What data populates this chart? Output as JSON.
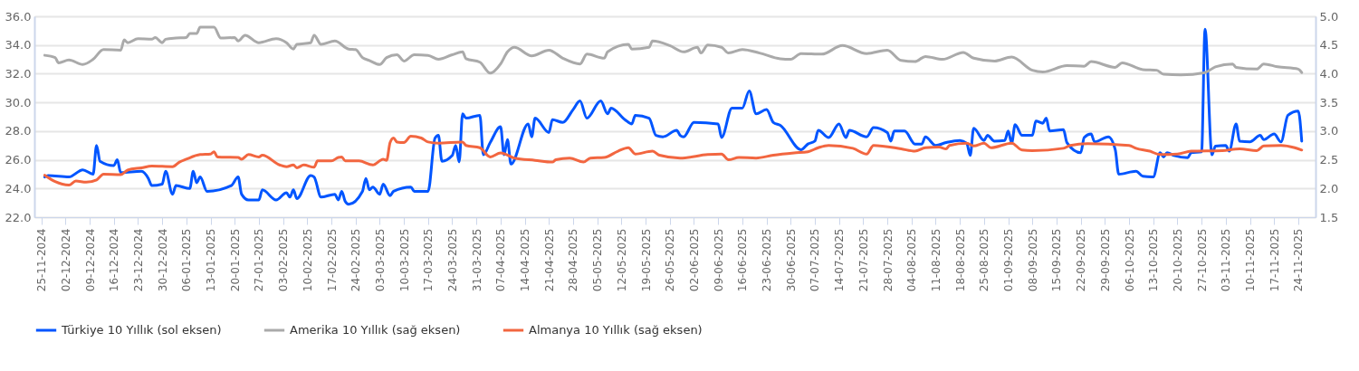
{
  "chart_data": {
    "type": "line",
    "legend": "bottom",
    "grid": "y",
    "xlim": [
      "2024-11-23",
      "2025-11-29"
    ],
    "xticks": [
      {
        "value": "2024-11-25",
        "label": "25-11-2024"
      },
      {
        "value": "2024-12-02",
        "label": "02-12-2024"
      },
      {
        "value": "2024-12-09",
        "label": "09-12-2024"
      },
      {
        "value": "2024-12-16",
        "label": "16-12-2024"
      },
      {
        "value": "2024-12-23",
        "label": "23-12-2024"
      },
      {
        "value": "2024-12-30",
        "label": "30-12-2024"
      },
      {
        "value": "2025-01-06",
        "label": "06-01-2025"
      },
      {
        "value": "2025-01-13",
        "label": "13-01-2025"
      },
      {
        "value": "2025-01-20",
        "label": "20-01-2025"
      },
      {
        "value": "2025-01-27",
        "label": "27-01-2025"
      },
      {
        "value": "2025-02-03",
        "label": "03-02-2025"
      },
      {
        "value": "2025-02-10",
        "label": "10-02-2025"
      },
      {
        "value": "2025-02-17",
        "label": "17-02-2025"
      },
      {
        "value": "2025-02-24",
        "label": "24-02-2025"
      },
      {
        "value": "2025-03-03",
        "label": "03-03-2025"
      },
      {
        "value": "2025-03-10",
        "label": "10-03-2025"
      },
      {
        "value": "2025-03-17",
        "label": "17-03-2025"
      },
      {
        "value": "2025-03-24",
        "label": "24-03-2025"
      },
      {
        "value": "2025-03-31",
        "label": "31-03-2025"
      },
      {
        "value": "2025-04-07",
        "label": "07-04-2025"
      },
      {
        "value": "2025-04-14",
        "label": "14-04-2025"
      },
      {
        "value": "2025-04-21",
        "label": "21-04-2025"
      },
      {
        "value": "2025-04-28",
        "label": "28-04-2025"
      },
      {
        "value": "2025-05-05",
        "label": "05-05-2025"
      },
      {
        "value": "2025-05-12",
        "label": "12-05-2025"
      },
      {
        "value": "2025-05-19",
        "label": "19-05-2025"
      },
      {
        "value": "2025-05-26",
        "label": "26-05-2025"
      },
      {
        "value": "2025-06-02",
        "label": "02-06-2025"
      },
      {
        "value": "2025-06-09",
        "label": "09-06-2025"
      },
      {
        "value": "2025-06-16",
        "label": "16-06-2025"
      },
      {
        "value": "2025-06-23",
        "label": "23-06-2025"
      },
      {
        "value": "2025-06-30",
        "label": "30-06-2025"
      },
      {
        "value": "2025-07-07",
        "label": "07-07-2025"
      },
      {
        "value": "2025-07-14",
        "label": "14-07-2025"
      },
      {
        "value": "2025-07-21",
        "label": "21-07-2025"
      },
      {
        "value": "2025-07-28",
        "label": "28-07-2025"
      },
      {
        "value": "2025-08-04",
        "label": "04-08-2025"
      },
      {
        "value": "2025-08-11",
        "label": "11-08-2025"
      },
      {
        "value": "2025-08-18",
        "label": "18-08-2025"
      },
      {
        "value": "2025-08-25",
        "label": "25-08-2025"
      },
      {
        "value": "2025-09-01",
        "label": "01-09-2025"
      },
      {
        "value": "2025-09-08",
        "label": "08-09-2025"
      },
      {
        "value": "2025-09-15",
        "label": "15-09-2025"
      },
      {
        "value": "2025-09-22",
        "label": "22-09-2025"
      },
      {
        "value": "2025-09-29",
        "label": "29-09-2025"
      },
      {
        "value": "2025-10-06",
        "label": "06-10-2025"
      },
      {
        "value": "2025-10-13",
        "label": "13-10-2025"
      },
      {
        "value": "2025-10-20",
        "label": "20-10-2025"
      },
      {
        "value": "2025-10-27",
        "label": "27-10-2025"
      },
      {
        "value": "2025-11-03",
        "label": "03-11-2025"
      },
      {
        "value": "2025-11-10",
        "label": "10-11-2025"
      },
      {
        "value": "2025-11-17",
        "label": "17-11-2025"
      },
      {
        "value": "2025-11-24",
        "label": "24-11-2025"
      }
    ],
    "ylim": [
      22,
      36
    ],
    "yticks": [
      {
        "value": 22,
        "label": "22.0"
      },
      {
        "value": 24,
        "label": "24.0"
      },
      {
        "value": 26,
        "label": "26.0"
      },
      {
        "value": 28,
        "label": "28.0"
      },
      {
        "value": 30,
        "label": "30.0"
      },
      {
        "value": 32,
        "label": "32.0"
      },
      {
        "value": 34,
        "label": "34.0"
      },
      {
        "value": 36,
        "label": "36.0"
      }
    ],
    "y2lim": [
      1.5,
      5.0
    ],
    "y2ticks": [
      {
        "value": 1.5,
        "label": "1.5"
      },
      {
        "value": 2,
        "label": "2.0"
      },
      {
        "value": 2.5,
        "label": "2.5"
      },
      {
        "value": 3,
        "label": "3.0"
      },
      {
        "value": 3.5,
        "label": "3.5"
      },
      {
        "value": 4,
        "label": "4.0"
      },
      {
        "value": 4.5,
        "label": "4.5"
      },
      {
        "value": 5,
        "label": "5.0"
      }
    ],
    "series": [
      {
        "name": "Türkiye 10 Yıllık (sol eksen)",
        "color": "#0055ff",
        "axis": "y",
        "x": [
          "2024-11-26",
          "2024-11-27",
          "2024-12-03",
          "2024-12-07",
          "2024-12-10",
          "2024-12-11",
          "2024-12-12",
          "2024-12-16",
          "2024-12-17",
          "2024-12-18",
          "2024-12-24",
          "2024-12-26",
          "2024-12-27",
          "2024-12-30",
          "2024-12-31",
          "2025-01-02",
          "2025-01-03",
          "2025-01-07",
          "2025-01-08",
          "2025-01-09",
          "2025-01-10",
          "2025-01-12",
          "2025-01-19",
          "2025-01-21",
          "2025-01-22",
          "2025-01-24",
          "2025-01-27",
          "2025-01-28",
          "2025-02-01",
          "2025-02-04",
          "2025-02-05",
          "2025-02-06",
          "2025-02-07",
          "2025-02-11",
          "2025-02-12",
          "2025-02-14",
          "2025-02-18",
          "2025-02-19",
          "2025-02-20",
          "2025-02-21",
          "2025-02-22",
          "2025-02-26",
          "2025-02-27",
          "2025-02-28",
          "2025-03-01",
          "2025-03-03",
          "2025-03-04",
          "2025-03-06",
          "2025-03-07",
          "2025-03-12",
          "2025-03-13",
          "2025-03-17",
          "2025-03-19",
          "2025-03-20",
          "2025-03-21",
          "2025-03-24",
          "2025-03-25",
          "2025-03-26",
          "2025-03-27",
          "2025-03-28",
          "2025-04-01",
          "2025-04-02",
          "2025-04-04",
          "2025-04-07",
          "2025-04-08",
          "2025-04-09",
          "2025-04-10",
          "2025-04-15",
          "2025-04-16",
          "2025-04-17",
          "2025-04-21",
          "2025-04-22",
          "2025-04-25",
          "2025-04-28",
          "2025-04-30",
          "2025-05-02",
          "2025-05-06",
          "2025-05-08",
          "2025-05-09",
          "2025-05-13",
          "2025-05-15",
          "2025-05-16",
          "2025-05-20",
          "2025-05-22",
          "2025-05-24",
          "2025-05-28",
          "2025-05-29",
          "2025-05-30",
          "2025-06-02",
          "2025-06-09",
          "2025-06-10",
          "2025-06-13",
          "2025-06-16",
          "2025-06-18",
          "2025-06-20",
          "2025-06-23",
          "2025-06-25",
          "2025-06-27",
          "2025-07-03",
          "2025-07-05",
          "2025-07-07",
          "2025-07-08",
          "2025-07-11",
          "2025-07-14",
          "2025-07-16",
          "2025-07-17",
          "2025-07-22",
          "2025-07-24",
          "2025-07-28",
          "2025-07-29",
          "2025-07-30",
          "2025-08-02",
          "2025-08-05",
          "2025-08-07",
          "2025-08-08",
          "2025-08-11",
          "2025-08-14",
          "2025-08-18",
          "2025-08-20",
          "2025-08-21",
          "2025-08-22",
          "2025-08-25",
          "2025-08-26",
          "2025-08-28",
          "2025-08-31",
          "2025-09-01",
          "2025-09-02",
          "2025-09-03",
          "2025-09-05",
          "2025-09-08",
          "2025-09-09",
          "2025-09-11",
          "2025-09-12",
          "2025-09-13",
          "2025-09-17",
          "2025-09-18",
          "2025-09-22",
          "2025-09-23",
          "2025-09-25",
          "2025-09-26",
          "2025-09-30",
          "2025-10-02",
          "2025-10-03",
          "2025-10-08",
          "2025-10-10",
          "2025-10-13",
          "2025-10-15",
          "2025-10-16",
          "2025-10-17",
          "2025-10-19",
          "2025-10-23",
          "2025-10-24",
          "2025-10-27",
          "2025-10-28",
          "2025-10-30",
          "2025-10-31",
          "2025-11-03",
          "2025-11-04",
          "2025-11-06",
          "2025-11-07",
          "2025-11-10",
          "2025-11-13",
          "2025-11-14",
          "2025-11-17",
          "2025-11-19",
          "2025-11-21",
          "2025-11-24",
          "2025-11-25"
        ],
        "values": [
          24.8,
          24.9,
          24.8,
          25.3,
          25.0,
          27.0,
          25.9,
          25.6,
          26.0,
          25.1,
          25.2,
          24.7,
          24.2,
          24.3,
          25.2,
          23.6,
          24.2,
          24.0,
          25.2,
          24.4,
          24.8,
          23.8,
          24.2,
          24.8,
          23.6,
          23.2,
          23.2,
          23.9,
          23.2,
          23.7,
          23.4,
          23.9,
          23.3,
          24.9,
          24.8,
          23.4,
          23.6,
          23.2,
          23.8,
          23.1,
          22.9,
          23.8,
          24.7,
          23.9,
          24.1,
          23.6,
          24.3,
          23.5,
          23.8,
          24.1,
          23.8,
          23.8,
          27.5,
          27.7,
          25.9,
          26.3,
          27.0,
          25.85,
          29.2,
          28.9,
          29.1,
          26.35,
          27.2,
          28.3,
          26.35,
          27.4,
          25.7,
          28.5,
          27.6,
          28.9,
          27.9,
          28.8,
          28.6,
          29.5,
          30.1,
          28.9,
          30.1,
          29.2,
          29.6,
          28.8,
          28.5,
          29.1,
          28.9,
          27.7,
          27.6,
          28.05,
          27.7,
          27.6,
          28.6,
          28.5,
          27.55,
          29.6,
          29.6,
          30.8,
          29.2,
          29.5,
          28.6,
          28.4,
          26.7,
          27.1,
          27.3,
          28.05,
          27.55,
          28.5,
          27.55,
          28.05,
          27.6,
          28.25,
          27.9,
          27.3,
          28.0,
          28.0,
          27.1,
          27.1,
          27.6,
          27.0,
          27.2,
          27.35,
          27.15,
          26.3,
          28.2,
          27.35,
          27.7,
          27.3,
          27.35,
          28.0,
          27.15,
          28.45,
          27.7,
          27.7,
          28.7,
          28.55,
          28.9,
          28.0,
          28.1,
          27.2,
          26.5,
          27.55,
          27.8,
          27.25,
          27.6,
          26.7,
          25.0,
          25.2,
          24.85,
          24.8,
          26.5,
          26.2,
          26.5,
          26.3,
          26.15,
          26.5,
          26.55,
          35.1,
          26.35,
          26.95,
          27.0,
          26.6,
          28.5,
          27.3,
          27.25,
          27.7,
          27.4,
          27.8,
          27.25,
          29.1,
          29.4,
          27.3
        ]
      },
      {
        "name": "Amerika 10 Yıllık (sağ eksen)",
        "color": "#aaaaaa",
        "axis": "y2",
        "x": [
          "2024-11-26",
          "2024-11-29",
          "2024-11-30",
          "2024-12-03",
          "2024-12-07",
          "2024-12-10",
          "2024-12-13",
          "2024-12-18",
          "2024-12-19",
          "2024-12-20",
          "2024-12-23",
          "2024-12-27",
          "2024-12-28",
          "2024-12-30",
          "2024-12-31",
          "2025-01-03",
          "2025-01-06",
          "2025-01-07",
          "2025-01-09",
          "2025-01-10",
          "2025-01-14",
          "2025-01-16",
          "2025-01-20",
          "2025-01-21",
          "2025-01-23",
          "2025-01-27",
          "2025-02-01",
          "2025-02-04",
          "2025-02-06",
          "2025-02-07",
          "2025-02-11",
          "2025-02-12",
          "2025-02-14",
          "2025-02-18",
          "2025-02-22",
          "2025-02-24",
          "2025-02-26",
          "2025-02-28",
          "2025-03-03",
          "2025-03-05",
          "2025-03-08",
          "2025-03-10",
          "2025-03-13",
          "2025-03-17",
          "2025-03-20",
          "2025-03-24",
          "2025-03-27",
          "2025-03-28",
          "2025-04-01",
          "2025-04-04",
          "2025-04-07",
          "2025-04-09",
          "2025-04-11",
          "2025-04-16",
          "2025-04-21",
          "2025-04-25",
          "2025-04-30",
          "2025-05-02",
          "2025-05-07",
          "2025-05-08",
          "2025-05-14",
          "2025-05-15",
          "2025-05-20",
          "2025-05-21",
          "2025-05-26",
          "2025-05-30",
          "2025-06-03",
          "2025-06-04",
          "2025-06-06",
          "2025-06-10",
          "2025-06-12",
          "2025-06-16",
          "2025-06-21",
          "2025-06-27",
          "2025-06-30",
          "2025-07-03",
          "2025-07-09",
          "2025-07-15",
          "2025-07-22",
          "2025-07-28",
          "2025-08-01",
          "2025-08-05",
          "2025-08-08",
          "2025-08-13",
          "2025-08-19",
          "2025-08-22",
          "2025-08-28",
          "2025-09-02",
          "2025-09-08",
          "2025-09-11",
          "2025-09-18",
          "2025-09-23",
          "2025-09-25",
          "2025-10-02",
          "2025-10-04",
          "2025-10-10",
          "2025-10-14",
          "2025-10-16",
          "2025-10-21",
          "2025-10-28",
          "2025-10-31",
          "2025-11-05",
          "2025-11-06",
          "2025-11-12",
          "2025-11-14",
          "2025-11-18",
          "2025-11-24",
          "2025-11-25"
        ],
        "values": [
          4.32,
          4.28,
          4.19,
          4.24,
          4.16,
          4.25,
          4.42,
          4.41,
          4.59,
          4.54,
          4.61,
          4.6,
          4.63,
          4.54,
          4.6,
          4.62,
          4.63,
          4.7,
          4.7,
          4.81,
          4.81,
          4.62,
          4.63,
          4.57,
          4.67,
          4.54,
          4.61,
          4.54,
          4.43,
          4.51,
          4.54,
          4.67,
          4.51,
          4.57,
          4.43,
          4.42,
          4.28,
          4.23,
          4.16,
          4.28,
          4.33,
          4.22,
          4.33,
          4.32,
          4.25,
          4.33,
          4.38,
          4.26,
          4.2,
          4.01,
          4.17,
          4.38,
          4.46,
          4.31,
          4.41,
          4.27,
          4.17,
          4.34,
          4.27,
          4.38,
          4.51,
          4.43,
          4.46,
          4.57,
          4.49,
          4.38,
          4.46,
          4.36,
          4.5,
          4.46,
          4.36,
          4.42,
          4.36,
          4.26,
          4.25,
          4.35,
          4.34,
          4.49,
          4.35,
          4.41,
          4.23,
          4.21,
          4.3,
          4.25,
          4.37,
          4.27,
          4.22,
          4.29,
          4.06,
          4.03,
          4.14,
          4.13,
          4.21,
          4.11,
          4.19,
          4.07,
          4.06,
          3.99,
          3.98,
          4.02,
          4.12,
          4.17,
          4.11,
          4.08,
          4.17,
          4.12,
          4.08,
          4.02
        ]
      },
      {
        "name": "Almanya 10 Yıllık (sağ eksen)",
        "color": "#f26640",
        "axis": "y2",
        "x": [
          "2024-11-26",
          "2024-11-29",
          "2024-12-03",
          "2024-12-05",
          "2024-12-08",
          "2024-12-11",
          "2024-12-13",
          "2024-12-18",
          "2024-12-20",
          "2024-12-24",
          "2024-12-27",
          "2025-01-02",
          "2025-01-04",
          "2025-01-06",
          "2025-01-10",
          "2025-01-13",
          "2025-01-14",
          "2025-01-15",
          "2025-01-21",
          "2025-01-22",
          "2025-01-24",
          "2025-01-27",
          "2025-01-28",
          "2025-02-02",
          "2025-02-04",
          "2025-02-06",
          "2025-02-07",
          "2025-02-09",
          "2025-02-12",
          "2025-02-13",
          "2025-02-17",
          "2025-02-19",
          "2025-02-20",
          "2025-02-21",
          "2025-02-25",
          "2025-03-01",
          "2025-03-04",
          "2025-03-05",
          "2025-03-06",
          "2025-03-07",
          "2025-03-08",
          "2025-03-10",
          "2025-03-12",
          "2025-03-15",
          "2025-03-17",
          "2025-03-20",
          "2025-03-27",
          "2025-03-28",
          "2025-04-01",
          "2025-04-04",
          "2025-04-07",
          "2025-04-11",
          "2025-04-17",
          "2025-04-22",
          "2025-04-23",
          "2025-04-27",
          "2025-05-01",
          "2025-05-03",
          "2025-05-07",
          "2025-05-11",
          "2025-05-14",
          "2025-05-16",
          "2025-05-21",
          "2025-05-23",
          "2025-05-29",
          "2025-06-06",
          "2025-06-10",
          "2025-06-12",
          "2025-06-15",
          "2025-06-20",
          "2025-06-25",
          "2025-07-01",
          "2025-07-05",
          "2025-07-08",
          "2025-07-11",
          "2025-07-18",
          "2025-07-22",
          "2025-07-24",
          "2025-08-01",
          "2025-08-05",
          "2025-08-08",
          "2025-08-12",
          "2025-08-14",
          "2025-08-15",
          "2025-08-20",
          "2025-08-22",
          "2025-08-25",
          "2025-08-27",
          "2025-09-02",
          "2025-09-05",
          "2025-09-08",
          "2025-09-17",
          "2025-09-19",
          "2025-09-24",
          "2025-10-06",
          "2025-10-08",
          "2025-10-12",
          "2025-10-15",
          "2025-10-20",
          "2025-10-24",
          "2025-11-02",
          "2025-11-07",
          "2025-11-12",
          "2025-11-14",
          "2025-11-19",
          "2025-11-23",
          "2025-11-25"
        ],
        "values": [
          2.23,
          2.12,
          2.06,
          2.13,
          2.11,
          2.15,
          2.25,
          2.24,
          2.32,
          2.36,
          2.39,
          2.38,
          2.46,
          2.51,
          2.59,
          2.6,
          2.64,
          2.55,
          2.54,
          2.51,
          2.59,
          2.55,
          2.58,
          2.41,
          2.38,
          2.41,
          2.36,
          2.41,
          2.37,
          2.48,
          2.48,
          2.54,
          2.55,
          2.48,
          2.48,
          2.41,
          2.51,
          2.49,
          2.8,
          2.88,
          2.81,
          2.8,
          2.91,
          2.88,
          2.81,
          2.79,
          2.81,
          2.75,
          2.71,
          2.55,
          2.62,
          2.53,
          2.49,
          2.46,
          2.5,
          2.53,
          2.46,
          2.53,
          2.54,
          2.65,
          2.71,
          2.6,
          2.65,
          2.58,
          2.53,
          2.59,
          2.6,
          2.5,
          2.54,
          2.53,
          2.58,
          2.62,
          2.64,
          2.71,
          2.75,
          2.7,
          2.6,
          2.75,
          2.69,
          2.65,
          2.71,
          2.72,
          2.69,
          2.75,
          2.79,
          2.74,
          2.79,
          2.71,
          2.79,
          2.67,
          2.66,
          2.7,
          2.75,
          2.78,
          2.75,
          2.7,
          2.65,
          2.59,
          2.6,
          2.65,
          2.66,
          2.69,
          2.66,
          2.74,
          2.75,
          2.71,
          2.67
        ]
      }
    ]
  }
}
